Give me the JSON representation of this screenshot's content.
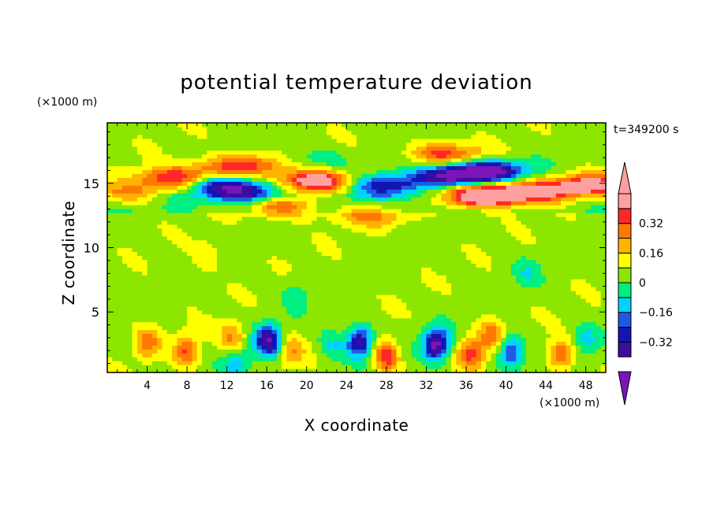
{
  "chart_data": {
    "type": "heatmap",
    "title": "potential temperature deviation",
    "xlabel": "X coordinate",
    "ylabel": "Z coordinate",
    "x_unit": "(×1000 m)",
    "y_unit": "(×1000 m)",
    "time_label": "t=349200 s",
    "xlim": [
      0,
      50
    ],
    "ylim": [
      0.3,
      19.7
    ],
    "x_ticks": [
      4,
      8,
      12,
      16,
      20,
      24,
      28,
      32,
      36,
      40,
      44,
      48
    ],
    "y_ticks": [
      5,
      10,
      15
    ],
    "colorbar": {
      "levels": [
        -0.48,
        -0.4,
        -0.32,
        -0.24,
        -0.16,
        -0.08,
        0,
        0.08,
        0.16,
        0.24,
        0.32,
        0.4,
        0.48
      ],
      "tick_labels": [
        "0.32",
        "0.16",
        "0",
        "−0.16",
        "−0.32"
      ],
      "tick_values": [
        0.32,
        0.16,
        0,
        -0.16,
        -0.32
      ],
      "colors": [
        "#7a16b8",
        "#3c0d9e",
        "#1414b4",
        "#1e5ae6",
        "#00d2ff",
        "#00ee82",
        "#8ce600",
        "#ffff00",
        "#ffb400",
        "#ff7800",
        "#ff2828",
        "#ffa0a0"
      ]
    },
    "features": [
      {
        "x": 6.5,
        "z": 15.4,
        "v": 0.36
      },
      {
        "x": 11.5,
        "z": 16.2,
        "v": 0.22
      },
      {
        "x": 15.0,
        "z": 16.5,
        "v": 0.22
      },
      {
        "x": 11.2,
        "z": 14.8,
        "v": -0.34
      },
      {
        "x": 14.5,
        "z": 14.3,
        "v": -0.34
      },
      {
        "x": 21.0,
        "z": 15.2,
        "v": 0.48
      },
      {
        "x": 17.5,
        "z": 13.3,
        "v": 0.33
      },
      {
        "x": 20.5,
        "z": 16.8,
        "v": -0.12
      },
      {
        "x": 28.0,
        "z": 14.8,
        "v": -0.38
      },
      {
        "x": 34.5,
        "z": 15.6,
        "v": -0.5
      },
      {
        "x": 38.5,
        "z": 16.0,
        "v": -0.46
      },
      {
        "x": 34.0,
        "z": 17.3,
        "v": 0.3
      },
      {
        "x": 40.5,
        "z": 14.2,
        "v": 0.36
      },
      {
        "x": 37.0,
        "z": 14.0,
        "v": 0.48
      },
      {
        "x": 44.0,
        "z": 14.4,
        "v": 0.28
      },
      {
        "x": 48.5,
        "z": 14.9,
        "v": 0.4
      },
      {
        "x": 2.0,
        "z": 14.2,
        "v": 0.2
      },
      {
        "x": 26.5,
        "z": 12.5,
        "v": 0.2
      },
      {
        "x": 8.0,
        "z": 2.0,
        "v": 0.28
      },
      {
        "x": 4.0,
        "z": 2.6,
        "v": 0.22
      },
      {
        "x": 12.5,
        "z": 3.0,
        "v": 0.22
      },
      {
        "x": 16.2,
        "z": 2.8,
        "v": -0.44
      },
      {
        "x": 13.0,
        "z": 1.1,
        "v": -0.2
      },
      {
        "x": 18.5,
        "z": 2.0,
        "v": 0.18
      },
      {
        "x": 22.5,
        "z": 2.4,
        "v": -0.14
      },
      {
        "x": 25.3,
        "z": 2.7,
        "v": -0.42
      },
      {
        "x": 28.0,
        "z": 1.6,
        "v": 0.34
      },
      {
        "x": 33.0,
        "z": 2.5,
        "v": -0.5
      },
      {
        "x": 36.5,
        "z": 1.8,
        "v": 0.3
      },
      {
        "x": 40.5,
        "z": 2.0,
        "v": -0.32
      },
      {
        "x": 38.5,
        "z": 3.2,
        "v": 0.22
      },
      {
        "x": 45.5,
        "z": 1.7,
        "v": 0.28
      },
      {
        "x": 48.0,
        "z": 2.8,
        "v": -0.14
      },
      {
        "x": 19.0,
        "z": 6.5,
        "v": -0.1
      },
      {
        "x": 42.0,
        "z": 8.0,
        "v": -0.1
      },
      {
        "x": 10.0,
        "z": 9.5,
        "v": 0.1
      }
    ]
  }
}
